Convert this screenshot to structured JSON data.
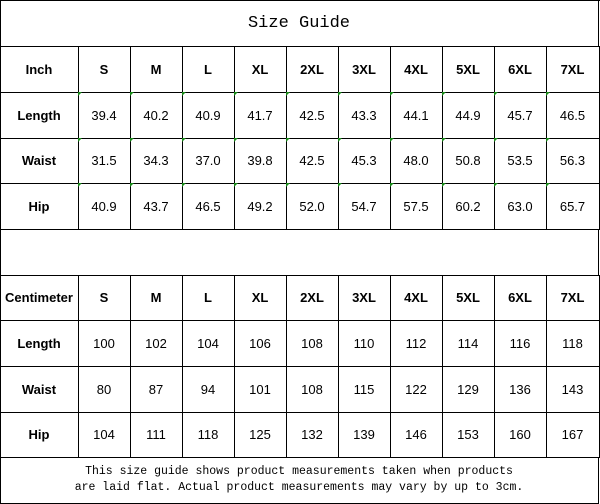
{
  "title": "Size Guide",
  "tables": [
    {
      "header": [
        "Inch",
        "S",
        "M",
        "L",
        "XL",
        "2XL",
        "3XL",
        "4XL",
        "5XL",
        "6XL",
        "7XL"
      ],
      "rows": [
        [
          "Length",
          "39.4",
          "40.2",
          "40.9",
          "41.7",
          "42.5",
          "43.3",
          "44.1",
          "44.9",
          "45.7",
          "46.5"
        ],
        [
          "Waist",
          "31.5",
          "34.3",
          "37.0",
          "39.8",
          "42.5",
          "45.3",
          "48.0",
          "50.8",
          "53.5",
          "56.3"
        ],
        [
          "Hip",
          "40.9",
          "43.7",
          "46.5",
          "49.2",
          "52.0",
          "54.7",
          "57.5",
          "60.2",
          "63.0",
          "65.7"
        ]
      ]
    },
    {
      "header": [
        "Centimeter",
        "S",
        "M",
        "L",
        "XL",
        "2XL",
        "3XL",
        "4XL",
        "5XL",
        "6XL",
        "7XL"
      ],
      "rows": [
        [
          "Length",
          "100",
          "102",
          "104",
          "106",
          "108",
          "110",
          "112",
          "114",
          "116",
          "118"
        ],
        [
          "Waist",
          "80",
          "87",
          "94",
          "101",
          "108",
          "115",
          "122",
          "129",
          "136",
          "143"
        ],
        [
          "Hip",
          "104",
          "111",
          "118",
          "125",
          "132",
          "139",
          "146",
          "153",
          "160",
          "167"
        ]
      ]
    }
  ],
  "note": [
    "This size guide shows product measurements taken when products",
    "are laid flat. Actual product measurements may vary by up to 3cm."
  ]
}
